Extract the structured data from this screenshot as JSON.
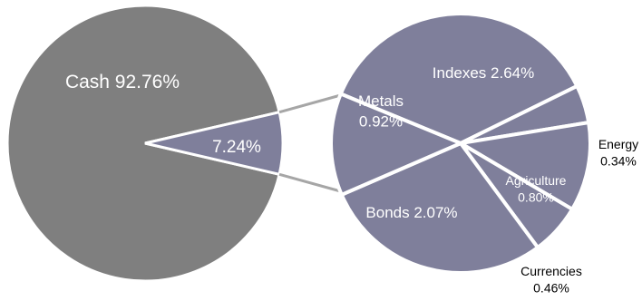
{
  "chart_data": {
    "type": "pie",
    "title": "",
    "main_pie": {
      "slices": [
        {
          "label": "Cash",
          "value": 92.76,
          "text": "Cash 92.76%",
          "color": "#7f7f7f"
        },
        {
          "label": "",
          "value": 7.24,
          "text": "7.24%",
          "color": "#7f7f9b"
        }
      ]
    },
    "sub_pie": {
      "total": 7.24,
      "slices": [
        {
          "label": "Indexes",
          "value": 2.64,
          "lines": [
            "Indexes 2.64%"
          ]
        },
        {
          "label": "Energy",
          "value": 0.34,
          "lines": [
            "Energy",
            "0.34%"
          ]
        },
        {
          "label": "Agriculture",
          "value": 0.8,
          "lines": [
            "Agriculture",
            "0.80%"
          ]
        },
        {
          "label": "Currencies",
          "value": 0.46,
          "lines": [
            "Currencies",
            "0.46%"
          ]
        },
        {
          "label": "Bonds",
          "value": 2.07,
          "lines": [
            "Bonds 2.07%"
          ]
        },
        {
          "label": "Metals",
          "value": 0.92,
          "lines": [
            "Metals",
            "0.92%"
          ]
        }
      ],
      "color": "#7f7f9b"
    },
    "connector_color": "#a6a6a6"
  }
}
